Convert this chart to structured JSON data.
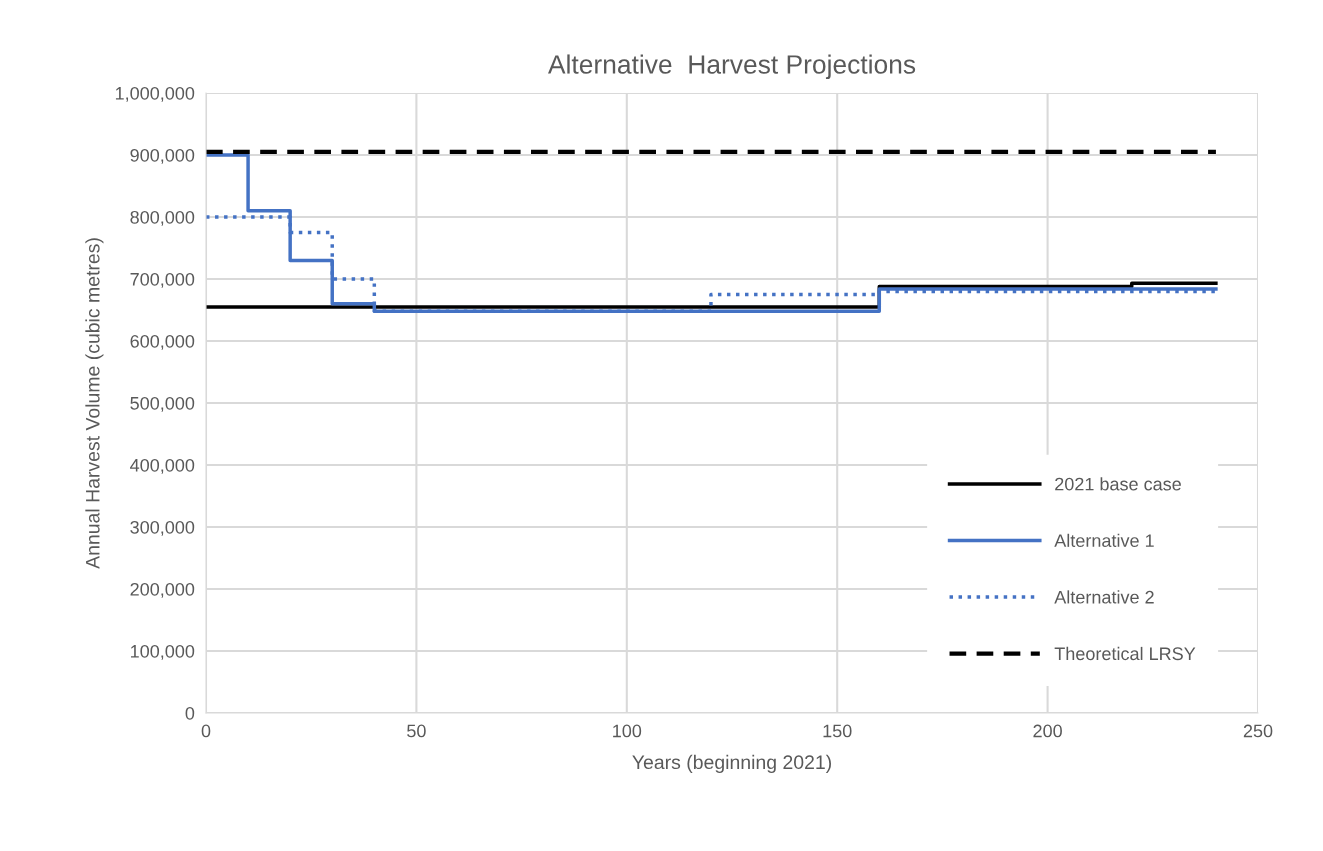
{
  "chart_data": {
    "type": "step",
    "title": "Alternative  Harvest Projections",
    "xlabel": "Years (beginning 2021)",
    "ylabel": "Annual Harvest Volume (cubic metres)",
    "series": [
      {
        "name": "2021 base case",
        "color": "#000000",
        "line_style": "solid",
        "x": [
          0,
          160,
          220,
          240
        ],
        "values": [
          655000,
          688000,
          693000,
          693000
        ]
      },
      {
        "name": "Alternative 1",
        "color": "#4472c4",
        "line_style": "solid",
        "x": [
          0,
          10,
          20,
          30,
          40,
          160,
          240
        ],
        "values": [
          900000,
          810000,
          730000,
          660000,
          648000,
          684000,
          684000
        ]
      },
      {
        "name": "Alternative 2",
        "color": "#4472c4",
        "line_style": "dotted",
        "x": [
          0,
          20,
          30,
          40,
          120,
          160,
          240
        ],
        "values": [
          800000,
          775000,
          700000,
          648000,
          675000,
          680000,
          680000
        ]
      },
      {
        "name": "Theoretical LRSY",
        "color": "#000000",
        "line_style": "dashed",
        "x": [
          0,
          240
        ],
        "values": [
          905000,
          905000
        ]
      }
    ],
    "xlim": [
      0,
      250
    ],
    "xticks": [
      0,
      50,
      100,
      150,
      200,
      250
    ],
    "ylim": [
      0,
      1000000
    ],
    "yticks": [
      {
        "value": 0,
        "label": "0"
      },
      {
        "value": 100000,
        "label": "100,000"
      },
      {
        "value": 200000,
        "label": "200,000"
      },
      {
        "value": 300000,
        "label": "300,000"
      },
      {
        "value": 400000,
        "label": "400,000"
      },
      {
        "value": 500000,
        "label": "500,000"
      },
      {
        "value": 600000,
        "label": "600,000"
      },
      {
        "value": 700000,
        "label": "700,000"
      },
      {
        "value": 800000,
        "label": "800,000"
      },
      {
        "value": 900000,
        "label": "900,000"
      },
      {
        "value": 1000000,
        "label": "1,000,000"
      }
    ],
    "grid": true,
    "legend": "bottom right",
    "marker": "none"
  }
}
